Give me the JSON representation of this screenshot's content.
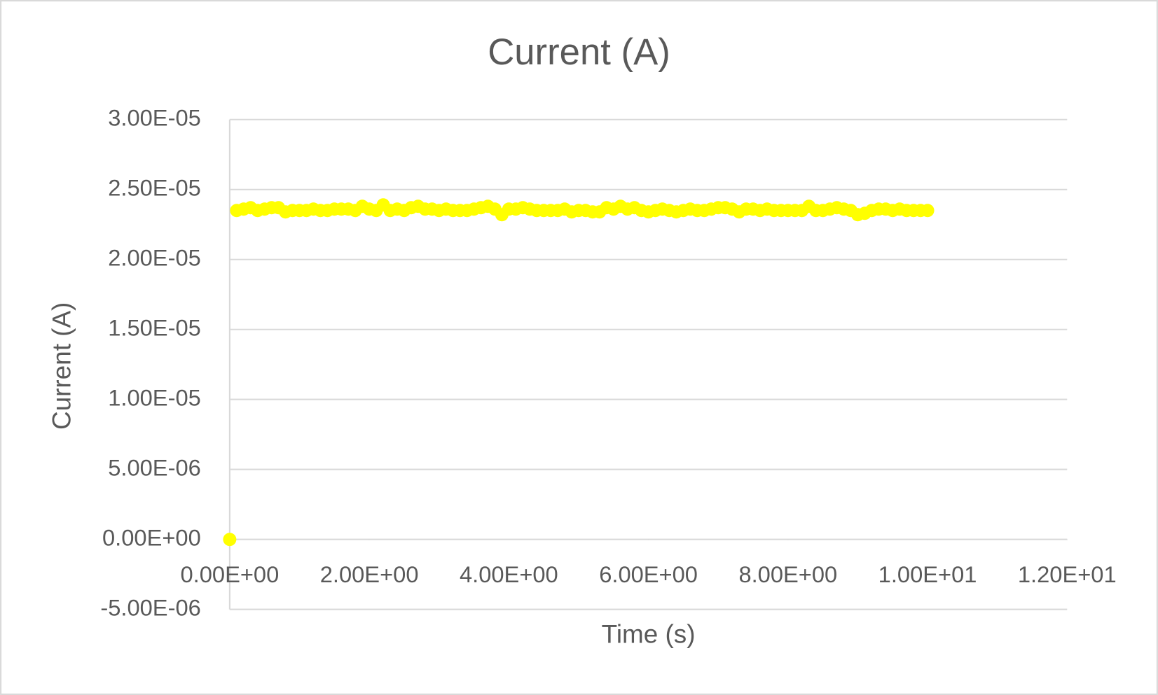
{
  "chart_data": {
    "type": "scatter",
    "title": "Current (A)",
    "x_label": "Time (s)",
    "y_label": "Current (A)",
    "color": "#ffff00",
    "grid": true,
    "x": [
      0,
      0.1,
      0.2,
      0.3,
      0.4,
      0.5,
      0.6,
      0.7,
      0.8,
      0.9,
      1.0,
      1.1,
      1.2,
      1.3,
      1.4,
      1.5,
      1.6,
      1.7,
      1.8,
      1.9,
      2.0,
      2.1,
      2.2,
      2.3,
      2.4,
      2.5,
      2.6,
      2.7,
      2.8,
      2.9,
      3.0,
      3.1,
      3.2,
      3.3,
      3.4,
      3.5,
      3.6,
      3.7,
      3.8,
      3.9,
      4.0,
      4.1,
      4.2,
      4.3,
      4.4,
      4.5,
      4.6,
      4.7,
      4.8,
      4.9,
      5.0,
      5.1,
      5.2,
      5.3,
      5.4,
      5.5,
      5.6,
      5.7,
      5.8,
      5.9,
      6.0,
      6.1,
      6.2,
      6.3,
      6.4,
      6.5,
      6.6,
      6.7,
      6.8,
      6.9,
      7.0,
      7.1,
      7.2,
      7.3,
      7.4,
      7.5,
      7.6,
      7.7,
      7.8,
      7.9,
      8.0,
      8.1,
      8.2,
      8.3,
      8.4,
      8.5,
      8.6,
      8.7,
      8.8,
      8.9,
      9.0,
      9.1,
      9.2,
      9.3,
      9.4,
      9.5,
      9.6,
      9.7,
      9.8,
      9.9,
      10.0
    ],
    "values": [
      0,
      2.35e-05,
      2.36e-05,
      2.37e-05,
      2.35e-05,
      2.36e-05,
      2.37e-05,
      2.37e-05,
      2.34e-05,
      2.35e-05,
      2.35e-05,
      2.35e-05,
      2.36e-05,
      2.35e-05,
      2.35e-05,
      2.36e-05,
      2.36e-05,
      2.36e-05,
      2.35e-05,
      2.38e-05,
      2.36e-05,
      2.35e-05,
      2.39e-05,
      2.35e-05,
      2.36e-05,
      2.35e-05,
      2.37e-05,
      2.38e-05,
      2.36e-05,
      2.36e-05,
      2.35e-05,
      2.36e-05,
      2.35e-05,
      2.35e-05,
      2.35e-05,
      2.36e-05,
      2.37e-05,
      2.38e-05,
      2.36e-05,
      2.32e-05,
      2.36e-05,
      2.36e-05,
      2.37e-05,
      2.36e-05,
      2.35e-05,
      2.35e-05,
      2.35e-05,
      2.35e-05,
      2.36e-05,
      2.34e-05,
      2.35e-05,
      2.35e-05,
      2.34e-05,
      2.34e-05,
      2.37e-05,
      2.36e-05,
      2.38e-05,
      2.36e-05,
      2.37e-05,
      2.35e-05,
      2.34e-05,
      2.35e-05,
      2.36e-05,
      2.35e-05,
      2.34e-05,
      2.35e-05,
      2.36e-05,
      2.35e-05,
      2.35e-05,
      2.36e-05,
      2.37e-05,
      2.37e-05,
      2.36e-05,
      2.34e-05,
      2.36e-05,
      2.36e-05,
      2.35e-05,
      2.36e-05,
      2.35e-05,
      2.35e-05,
      2.35e-05,
      2.35e-05,
      2.35e-05,
      2.38e-05,
      2.35e-05,
      2.35e-05,
      2.36e-05,
      2.37e-05,
      2.36e-05,
      2.35e-05,
      2.32e-05,
      2.33e-05,
      2.35e-05,
      2.36e-05,
      2.36e-05,
      2.35e-05,
      2.36e-05,
      2.35e-05,
      2.35e-05,
      2.35e-05,
      2.35e-05
    ],
    "xlim": [
      0,
      12
    ],
    "xticks": [
      {
        "value": 0,
        "label": "0.00E+00"
      },
      {
        "value": 2,
        "label": "2.00E+00"
      },
      {
        "value": 4,
        "label": "4.00E+00"
      },
      {
        "value": 6,
        "label": "6.00E+00"
      },
      {
        "value": 8,
        "label": "8.00E+00"
      },
      {
        "value": 10,
        "label": "1.00E+01"
      },
      {
        "value": 12,
        "label": "1.20E+01"
      }
    ],
    "ylim": [
      -5e-06,
      3e-05
    ],
    "yticks": [
      {
        "value": -5e-06,
        "label": "-5.00E-06"
      },
      {
        "value": 0,
        "label": "0.00E+00"
      },
      {
        "value": 5e-06,
        "label": "5.00E-06"
      },
      {
        "value": 1e-05,
        "label": "1.00E-05"
      },
      {
        "value": 1.5e-05,
        "label": "1.50E-05"
      },
      {
        "value": 2e-05,
        "label": "2.00E-05"
      },
      {
        "value": 2.5e-05,
        "label": "2.50E-05"
      },
      {
        "value": 3e-05,
        "label": "3.00E-05"
      }
    ]
  }
}
